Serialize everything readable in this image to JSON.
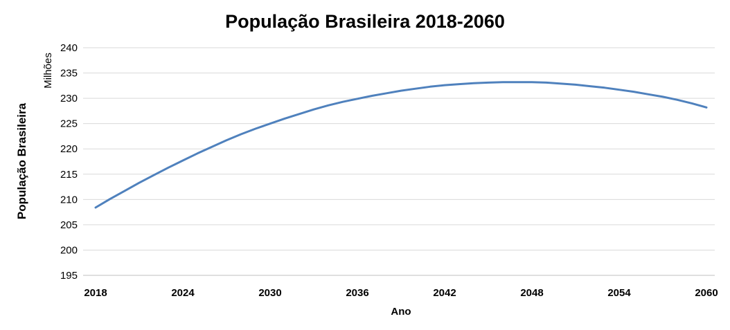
{
  "chart_data": {
    "type": "line",
    "title": "População Brasileira 2018-2060",
    "xlabel": "Ano",
    "ylabel": "População Brasileira",
    "y_unit_label": "Milhões",
    "xlim": [
      2018,
      2060
    ],
    "ylim": [
      195,
      240
    ],
    "x_ticks": [
      "2018",
      "2024",
      "2030",
      "2036",
      "2042",
      "2048",
      "2054",
      "2060"
    ],
    "y_ticks": [
      "195",
      "200",
      "205",
      "210",
      "215",
      "220",
      "225",
      "230",
      "235",
      "240"
    ],
    "grid": true,
    "legend": "none",
    "series": [
      {
        "color": "#4f81bd",
        "x": [
          2018,
          2019,
          2020,
          2021,
          2022,
          2023,
          2024,
          2025,
          2026,
          2027,
          2028,
          2029,
          2030,
          2031,
          2032,
          2033,
          2034,
          2035,
          2036,
          2037,
          2038,
          2039,
          2040,
          2041,
          2042,
          2043,
          2044,
          2045,
          2046,
          2047,
          2048,
          2049,
          2050,
          2051,
          2052,
          2053,
          2054,
          2055,
          2056,
          2057,
          2058,
          2059,
          2060
        ],
        "y": [
          208.4,
          210.1,
          211.7,
          213.3,
          214.8,
          216.3,
          217.7,
          219.1,
          220.4,
          221.7,
          222.9,
          224.0,
          225.0,
          226.0,
          226.9,
          227.8,
          228.6,
          229.3,
          229.9,
          230.5,
          231.0,
          231.5,
          231.9,
          232.3,
          232.6,
          232.8,
          233.0,
          233.1,
          233.2,
          233.2,
          233.2,
          233.1,
          232.9,
          232.7,
          232.4,
          232.1,
          231.7,
          231.3,
          230.8,
          230.3,
          229.7,
          229.0,
          228.2
        ]
      }
    ]
  }
}
